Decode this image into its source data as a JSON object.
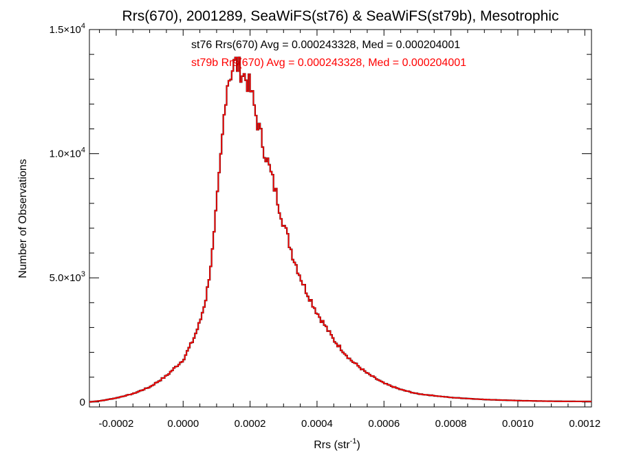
{
  "chart_data": {
    "type": "histogram",
    "title": "Rrs(670), 2001289, SeaWiFS(st76) & SeaWiFS(st79b), Mesotrophic",
    "xlabel_base": "Rrs (str",
    "xlabel_sup": "-1",
    "xlabel_end": ")",
    "ylabel": "Number of Observations",
    "xlim": [
      -0.00028,
      0.00122
    ],
    "ylim": [
      -200,
      15000
    ],
    "grid": false,
    "x_ticks": [
      {
        "value": -0.0002,
        "label": "-0.0002"
      },
      {
        "value": 0.0,
        "label": "0.0000"
      },
      {
        "value": 0.0002,
        "label": "0.0002"
      },
      {
        "value": 0.0004,
        "label": "0.0004"
      },
      {
        "value": 0.0006,
        "label": "0.0006"
      },
      {
        "value": 0.0008,
        "label": "0.0008"
      },
      {
        "value": 0.001,
        "label": "0.0010"
      },
      {
        "value": 0.0012,
        "label": "0.0012"
      }
    ],
    "y_ticks": [
      {
        "value": 0,
        "label": "0",
        "mant": "",
        "exp": ""
      },
      {
        "value": 5000,
        "label": "",
        "mant": "5.0×10",
        "exp": "3"
      },
      {
        "value": 10000,
        "label": "",
        "mant": "1.0×10",
        "exp": "4"
      },
      {
        "value": 15000,
        "label": "",
        "mant": "1.5×10",
        "exp": "4"
      }
    ],
    "annotations": [
      {
        "text": "st76 Rrs(670) Avg = 0.000243328, Med = 0.000204001",
        "color": "#000000"
      },
      {
        "text": "st79b Rrs(670) Avg = 0.000243328, Med = 0.000204001",
        "color": "#ff0000"
      }
    ],
    "series": [
      {
        "name": "st76",
        "color": "#000000"
      },
      {
        "name": "st79b",
        "color": "#ff0000"
      }
    ],
    "bin_width": 5e-06,
    "curve": [
      [
        -0.00028,
        0
      ],
      [
        -0.00024,
        60
      ],
      [
        -0.0002,
        160
      ],
      [
        -0.00015,
        330
      ],
      [
        -0.0001,
        600
      ],
      [
        -5e-05,
        1050
      ],
      [
        0.0,
        1700
      ],
      [
        3e-05,
        2500
      ],
      [
        5e-05,
        3200
      ],
      [
        7e-05,
        4300
      ],
      [
        9e-05,
        6300
      ],
      [
        0.00011,
        9400
      ],
      [
        0.00013,
        12800
      ],
      [
        0.000155,
        13700
      ],
      [
        0.00018,
        13200
      ],
      [
        0.0002,
        12700
      ],
      [
        0.00022,
        11400
      ],
      [
        0.00024,
        10300
      ],
      [
        0.00027,
        8800
      ],
      [
        0.0003,
        7200
      ],
      [
        0.00033,
        5800
      ],
      [
        0.00036,
        4700
      ],
      [
        0.0004,
        3600
      ],
      [
        0.00045,
        2500
      ],
      [
        0.0005,
        1700
      ],
      [
        0.00055,
        1150
      ],
      [
        0.0006,
        750
      ],
      [
        0.00065,
        500
      ],
      [
        0.0007,
        330
      ],
      [
        0.0008,
        180
      ],
      [
        0.0009,
        100
      ],
      [
        0.001,
        55
      ],
      [
        0.0011,
        30
      ],
      [
        0.00122,
        20
      ]
    ]
  }
}
